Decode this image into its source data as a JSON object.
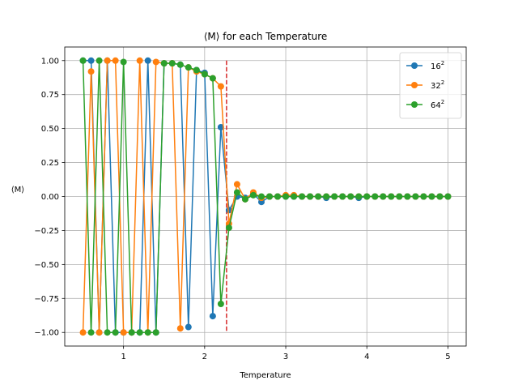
{
  "chart_data": {
    "type": "line",
    "title": "⟨M⟩ for each Temperature",
    "xlabel": "Temperature",
    "ylabel": "⟨M⟩",
    "xlim": [
      0.275,
      5.225
    ],
    "ylim": [
      -1.1,
      1.1
    ],
    "xticks": [
      1,
      2,
      3,
      4,
      5
    ],
    "xtick_labels": [
      "1",
      "2",
      "3",
      "4",
      "5"
    ],
    "yticks": [
      -1.0,
      -0.75,
      -0.5,
      -0.25,
      0.0,
      0.25,
      0.5,
      0.75,
      1.0
    ],
    "ytick_labels": [
      "−1.00",
      "−0.75",
      "−0.50",
      "−0.25",
      "0.00",
      "0.25",
      "0.50",
      "0.75",
      "1.00"
    ],
    "grid": true,
    "legend_position": "top-right",
    "vline": {
      "x": 2.27,
      "color": "#d62728",
      "style": "dashed"
    },
    "x": [
      0.5,
      0.6,
      0.7,
      0.8,
      0.9,
      1.0,
      1.1,
      1.2,
      1.3,
      1.4,
      1.5,
      1.6,
      1.7,
      1.8,
      1.9,
      2.0,
      2.1,
      2.2,
      2.3,
      2.4,
      2.5,
      2.6,
      2.7,
      2.8,
      2.9,
      3.0,
      3.1,
      3.2,
      3.3,
      3.4,
      3.5,
      3.6,
      3.7,
      3.8,
      3.9,
      4.0,
      4.1,
      4.2,
      4.3,
      4.4,
      4.5,
      4.6,
      4.7,
      4.8,
      4.9,
      5.0
    ],
    "series": [
      {
        "name": "16",
        "name_exponent": "2",
        "color": "#1f77b4",
        "values": [
          1.0,
          1.0,
          -1.0,
          1.0,
          -1.0,
          -1.0,
          -1.0,
          -1.0,
          1.0,
          -1.0,
          0.98,
          0.98,
          0.97,
          -0.96,
          0.93,
          0.91,
          -0.88,
          0.51,
          -0.1,
          0.0,
          -0.01,
          0.02,
          -0.04,
          0.0,
          0.0,
          0.0,
          0.0,
          0.0,
          0.0,
          0.0,
          -0.01,
          0.0,
          0.0,
          0.0,
          -0.01,
          0.0,
          0.0,
          0.0,
          0.0,
          0.0,
          0.0,
          0.0,
          0.0,
          0.0,
          0.0,
          0.0
        ]
      },
      {
        "name": "32",
        "name_exponent": "2",
        "color": "#ff7f0e",
        "values": [
          -1.0,
          0.92,
          -1.0,
          1.0,
          1.0,
          -1.0,
          -1.0,
          1.0,
          -1.0,
          0.99,
          0.98,
          0.98,
          -0.97,
          0.95,
          0.92,
          0.9,
          0.87,
          0.81,
          -0.2,
          0.09,
          -0.02,
          0.03,
          -0.01,
          0.0,
          0.0,
          0.01,
          0.01,
          0.0,
          0.0,
          0.0,
          0.0,
          0.0,
          0.0,
          0.0,
          0.0,
          0.0,
          0.0,
          0.0,
          0.0,
          0.0,
          0.0,
          0.0,
          0.0,
          0.0,
          0.0,
          0.0
        ]
      },
      {
        "name": "64",
        "name_exponent": "2",
        "color": "#2ca02c",
        "values": [
          1.0,
          -1.0,
          1.0,
          -1.0,
          -1.0,
          0.99,
          -1.0,
          -1.0,
          -1.0,
          -1.0,
          0.98,
          0.98,
          0.97,
          0.95,
          0.93,
          0.9,
          0.87,
          -0.79,
          -0.23,
          0.03,
          -0.02,
          0.01,
          0.0,
          0.0,
          0.0,
          0.0,
          0.0,
          0.0,
          0.0,
          0.0,
          0.0,
          0.0,
          0.0,
          0.0,
          0.0,
          0.0,
          0.0,
          0.0,
          0.0,
          0.0,
          0.0,
          0.0,
          0.0,
          0.0,
          0.0,
          0.0
        ]
      }
    ]
  }
}
